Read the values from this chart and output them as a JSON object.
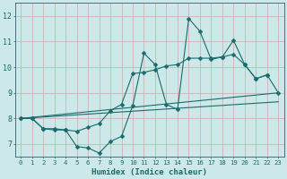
{
  "xlabel": "Humidex (Indice chaleur)",
  "bg_color": "#cce8e8",
  "line_color": "#1a6b6b",
  "grid_color": "#aacccc",
  "xlim": [
    -0.5,
    23.5
  ],
  "ylim": [
    6.5,
    12.5
  ],
  "yticks": [
    7,
    8,
    9,
    10,
    11,
    12
  ],
  "xticks": [
    0,
    1,
    2,
    3,
    4,
    5,
    6,
    7,
    8,
    9,
    10,
    11,
    12,
    13,
    14,
    15,
    16,
    17,
    18,
    19,
    20,
    21,
    22,
    23
  ],
  "series": [
    {
      "x": [
        0,
        1,
        2,
        3,
        4,
        5,
        6,
        7,
        8,
        9,
        10,
        11,
        12,
        13,
        14,
        15,
        16,
        17,
        18,
        19,
        20,
        21,
        22
      ],
      "y": [
        8.0,
        8.0,
        7.6,
        7.6,
        7.55,
        6.9,
        6.85,
        6.65,
        7.1,
        7.3,
        8.5,
        10.55,
        10.1,
        8.55,
        8.35,
        11.9,
        11.4,
        10.3,
        10.4,
        11.05,
        10.1,
        9.55,
        9.7
      ],
      "marker": "D",
      "markersize": 2.5,
      "lw": 0.8
    },
    {
      "x": [
        0,
        1,
        2,
        3,
        4,
        5,
        6,
        7,
        8,
        9,
        10,
        11,
        12,
        13,
        14,
        15,
        16,
        17,
        18,
        19,
        20,
        21,
        22,
        23
      ],
      "y": [
        8.0,
        8.0,
        7.6,
        7.55,
        7.55,
        7.5,
        7.65,
        7.8,
        8.3,
        8.55,
        9.75,
        9.8,
        9.9,
        10.05,
        10.1,
        10.35,
        10.35,
        10.35,
        10.4,
        10.5,
        10.1,
        9.55,
        9.7,
        9.0
      ],
      "marker": "D",
      "markersize": 2.5,
      "lw": 0.8
    },
    {
      "x": [
        0,
        23
      ],
      "y": [
        8.0,
        9.0
      ],
      "marker": null,
      "markersize": 0,
      "lw": 0.8
    },
    {
      "x": [
        0,
        23
      ],
      "y": [
        8.0,
        8.65
      ],
      "marker": null,
      "markersize": 0,
      "lw": 0.8
    }
  ]
}
